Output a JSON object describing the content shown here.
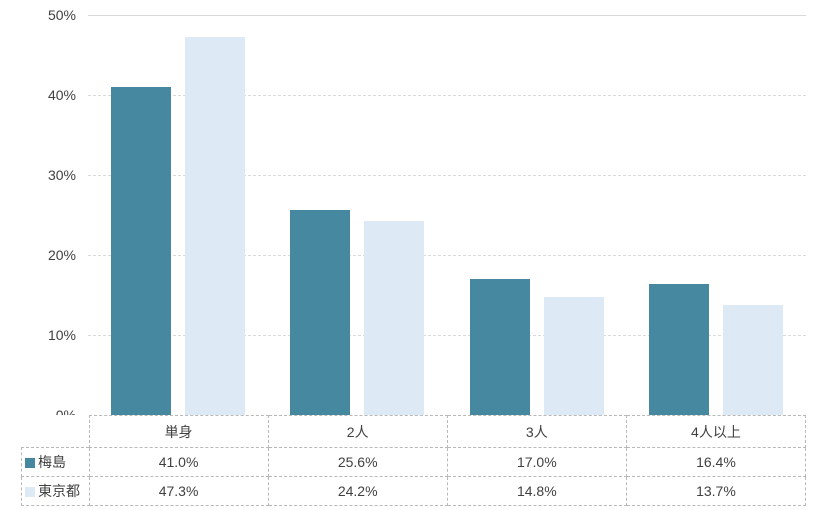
{
  "chart_data": {
    "type": "bar",
    "title": "",
    "xlabel": "",
    "ylabel": "",
    "categories": [
      "単身",
      "2人",
      "3人",
      "4人以上"
    ],
    "series": [
      {
        "name": "梅島",
        "color": "#45889f",
        "values": [
          41.0,
          25.6,
          17.0,
          16.4
        ]
      },
      {
        "name": "東京都",
        "color": "#dde9f4",
        "values": [
          47.3,
          24.2,
          14.8,
          13.7
        ]
      }
    ],
    "value_suffix": "%",
    "value_decimals": 1,
    "ylim": [
      0,
      50
    ],
    "y_tick_step": 10,
    "y_ticks": [
      "0%",
      "10%",
      "20%",
      "30%",
      "40%",
      "50%"
    ],
    "grid": true,
    "gridline_style": "dashed",
    "top_gridline_style": "solid",
    "legend_position": "table-left"
  },
  "colors": {
    "series1": "#45889f",
    "series2": "#dde9f4",
    "gridline": "#d9d9d9",
    "table_border": "#b9b9b9",
    "text": "#404040",
    "background": "#ffffff"
  }
}
